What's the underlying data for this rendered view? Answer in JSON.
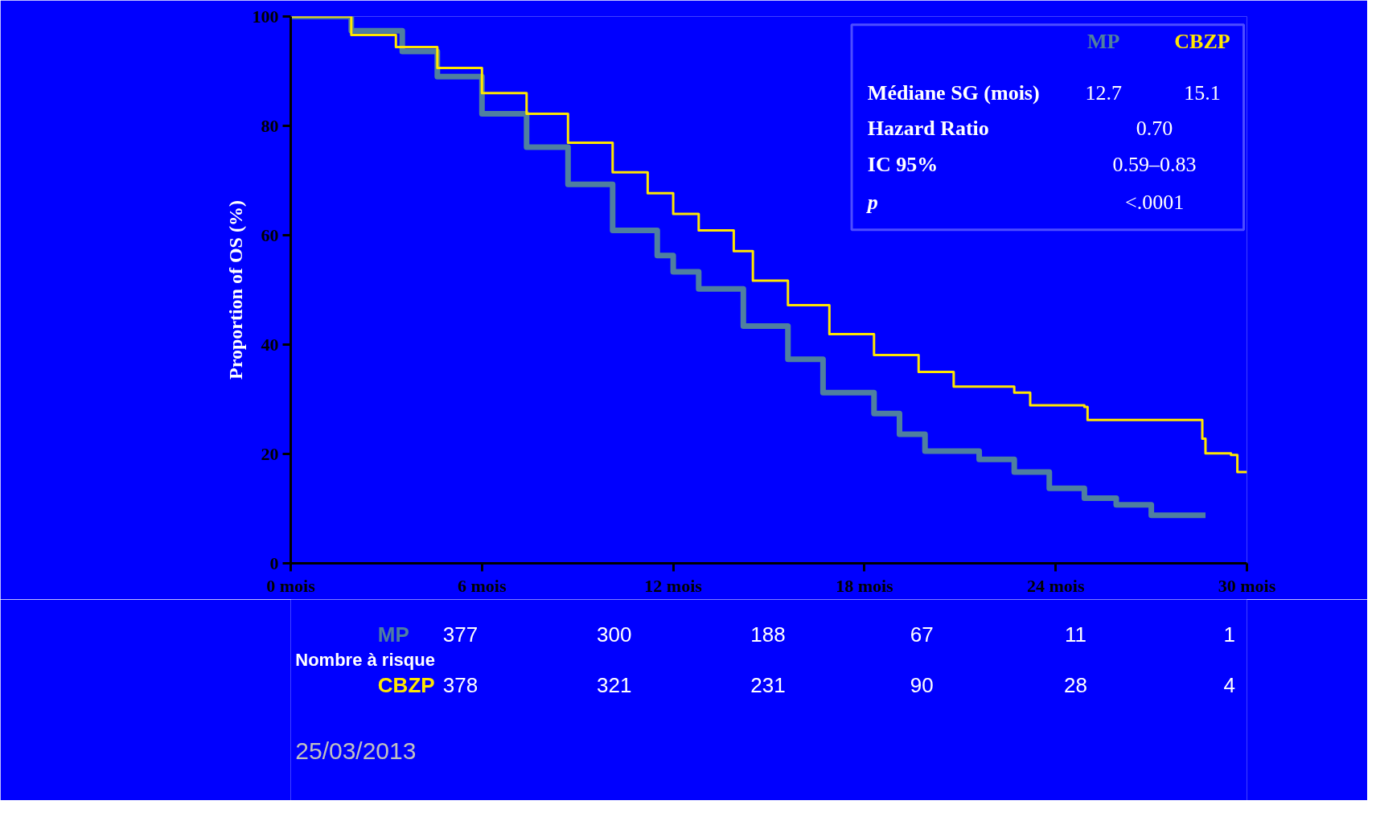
{
  "chart_data": {
    "type": "step",
    "ylabel": "Proportion of OS (%)",
    "xlim": [
      0,
      30
    ],
    "ylim": [
      0,
      100
    ],
    "xticks": [
      {
        "value": 0,
        "label": "0 mois"
      },
      {
        "value": 6,
        "label": "6 mois"
      },
      {
        "value": 12,
        "label": "12 mois"
      },
      {
        "value": 18,
        "label": "18 mois"
      },
      {
        "value": 24,
        "label": "24 mois"
      },
      {
        "value": 30,
        "label": "30 mois"
      }
    ],
    "yticks": [
      0,
      20,
      40,
      60,
      80,
      100
    ],
    "grid": false,
    "legend": "top right",
    "series": [
      {
        "name": "MP",
        "color": "#4f7fa0",
        "x": [
          0,
          1.9,
          3.5,
          4.6,
          6.0,
          7.4,
          8.7,
          10.1,
          11.5,
          12.0,
          12.8,
          14.2,
          15.6,
          16.7,
          18.3,
          19.1,
          19.9,
          21.6,
          22.7,
          23.8,
          24.9,
          25.9,
          27.0,
          28.7
        ],
        "values": [
          100,
          97.4,
          93.6,
          89.0,
          82.2,
          76.1,
          69.3,
          60.9,
          56.3,
          53.3,
          50.2,
          43.4,
          37.3,
          31.2,
          27.4,
          23.6,
          20.5,
          19.0,
          16.7,
          13.7,
          11.9,
          10.7,
          8.8,
          8.8
        ]
      },
      {
        "name": "CBZP",
        "color": "#ffe600",
        "x": [
          0,
          1.9,
          3.3,
          4.6,
          6.0,
          7.4,
          8.7,
          10.1,
          11.2,
          12.0,
          12.8,
          13.9,
          14.5,
          15.6,
          16.9,
          18.3,
          19.7,
          20.8,
          22.7,
          23.2,
          24.9,
          25.0,
          28.4,
          28.6,
          28.7,
          29.5,
          29.7,
          30
        ],
        "values": [
          100,
          96.6,
          94.4,
          90.6,
          86.0,
          82.2,
          76.9,
          71.5,
          67.7,
          63.9,
          60.9,
          57.1,
          51.7,
          47.2,
          41.9,
          38.1,
          35.0,
          32.3,
          31.2,
          28.9,
          28.6,
          26.2,
          26.2,
          22.8,
          20.1,
          19.8,
          16.7,
          16.7
        ]
      }
    ],
    "annotations": [
      "Médiane SG (mois)",
      "12.7",
      "15.1",
      "Hazard Ratio",
      "0.70",
      "IC 95%",
      "0.59–0.83",
      "p",
      "<.0001",
      "Nombre à risque",
      "377",
      "300",
      "188",
      "67",
      "11",
      "1",
      "378",
      "321",
      "231",
      "90",
      "28",
      "4",
      "25/03/2013"
    ]
  }
}
